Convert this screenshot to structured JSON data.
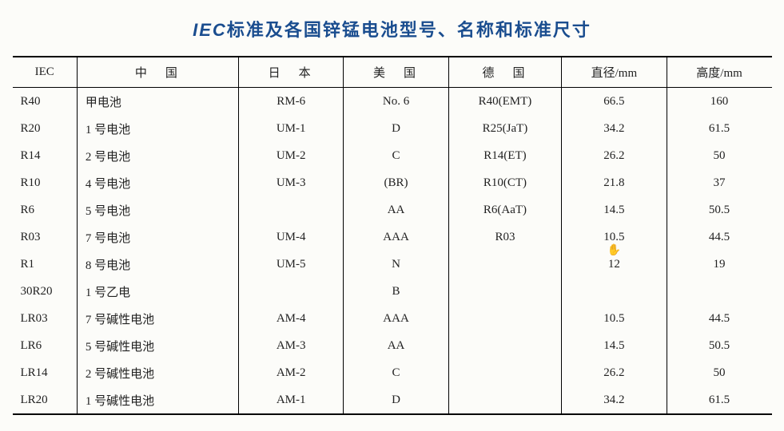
{
  "title_prefix": "IEC",
  "title_rest": "标准及各国锌锰电池型号、名称和标准尺寸",
  "headers": {
    "iec": "IEC",
    "china": "中　国",
    "japan": "日　本",
    "usa": "美　国",
    "germany": "德　国",
    "diameter": "直径/mm",
    "height": "高度/mm"
  },
  "rows": [
    {
      "iec": "R40",
      "cn": "甲电池",
      "jp": "RM-6",
      "us": "No. 6",
      "de": "R40(EMT)",
      "dia": "66.5",
      "h": "160"
    },
    {
      "iec": "R20",
      "cn": "1 号电池",
      "jp": "UM-1",
      "us": "D",
      "de": "R25(JaT)",
      "dia": "34.2",
      "h": "61.5"
    },
    {
      "iec": "R14",
      "cn": "2 号电池",
      "jp": "UM-2",
      "us": "C",
      "de": "R14(ET)",
      "dia": "26.2",
      "h": "50"
    },
    {
      "iec": "R10",
      "cn": "4 号电池",
      "jp": "UM-3",
      "us": "(BR)",
      "de": "R10(CT)",
      "dia": "21.8",
      "h": "37"
    },
    {
      "iec": "R6",
      "cn": "5 号电池",
      "jp": "",
      "us": "AA",
      "de": "R6(AaT)",
      "dia": "14.5",
      "h": "50.5"
    },
    {
      "iec": "R03",
      "cn": "7 号电池",
      "jp": "UM-4",
      "us": "AAA",
      "de": "R03",
      "dia": "10.5",
      "h": "44.5"
    },
    {
      "iec": "R1",
      "cn": "8 号电池",
      "jp": "UM-5",
      "us": "N",
      "de": "",
      "dia": "12",
      "h": "19"
    },
    {
      "iec": "30R20",
      "cn": "1 号乙电",
      "jp": "",
      "us": "B",
      "de": "",
      "dia": "",
      "h": ""
    },
    {
      "iec": "LR03",
      "cn": "7 号碱性电池",
      "jp": "AM-4",
      "us": "AAA",
      "de": "",
      "dia": "10.5",
      "h": "44.5"
    },
    {
      "iec": "LR6",
      "cn": "5 号碱性电池",
      "jp": "AM-3",
      "us": "AA",
      "de": "",
      "dia": "14.5",
      "h": "50.5"
    },
    {
      "iec": "LR14",
      "cn": "2 号碱性电池",
      "jp": "AM-2",
      "us": "C",
      "de": "",
      "dia": "26.2",
      "h": "50"
    },
    {
      "iec": "LR20",
      "cn": "1 号碱性电池",
      "jp": "AM-1",
      "us": "D",
      "de": "",
      "dia": "34.2",
      "h": "61.5"
    }
  ],
  "colors": {
    "title": "#1a4d8f",
    "text": "#222222",
    "bg": "#fcfcf9",
    "border": "#000000"
  },
  "cursor_row_index": 5,
  "cursor_col": "dia"
}
